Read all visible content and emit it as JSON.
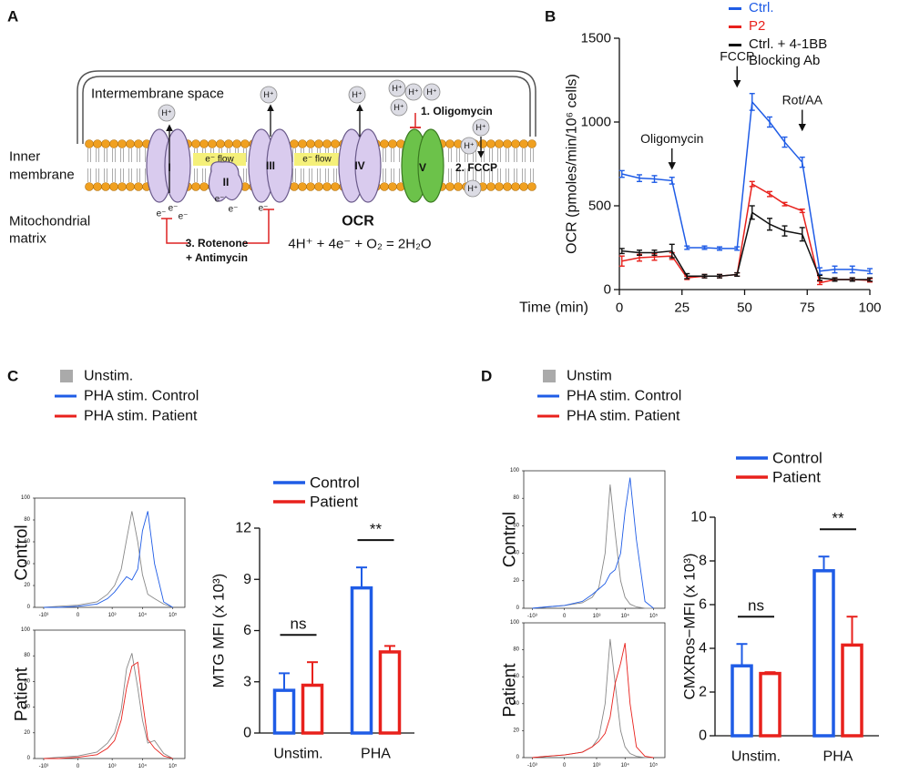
{
  "panel_labels": [
    "A",
    "B",
    "C",
    "D"
  ],
  "diagram": {
    "intermembrane": "Intermembrane space",
    "inner_membrane": [
      "Inner",
      "membrane"
    ],
    "matrix": [
      "Mitochondrial",
      "matrix"
    ],
    "complexes": [
      "I",
      "II",
      "III",
      "IV",
      "V"
    ],
    "electron_flow": "e⁻ flow",
    "proton": "H⁺",
    "electron": "e⁻",
    "oligomycin": "1. Oligomycin",
    "fccp": "2. FCCP",
    "rotenone_antimycin": [
      "3. Rotenone",
      "+ Antimycin"
    ],
    "ocr_title": "OCR",
    "equation": "4H⁺ + 4e⁻ + O₂ = 2H₂O"
  },
  "figure_legends": [
    {
      "entries": [
        {
          "name": "Unstim.",
          "color": "#aaaaaa",
          "shape": "square"
        },
        {
          "name": "PHA stim. Control",
          "color": "#1f5ce6",
          "shape": "line"
        },
        {
          "name": "PHA stim. Patient",
          "color": "#e8211c",
          "shape": "line"
        }
      ]
    },
    {
      "entries": [
        {
          "name": "Unstim",
          "color": "#aaaaaa",
          "shape": "square"
        },
        {
          "name": "PHA stim. Control",
          "color": "#1f5ce6",
          "shape": "line"
        },
        {
          "name": "PHA stim. Patient",
          "color": "#e8211c",
          "shape": "line"
        }
      ]
    }
  ],
  "chart_data": [
    {
      "type": "line",
      "xlabel": "Time (min)",
      "ylabel": "OCR (pmoles/min/10⁶ cells)",
      "x": [
        1,
        8,
        14,
        21,
        27,
        34,
        40,
        47,
        53,
        60,
        66,
        73,
        80,
        86,
        93,
        100
      ],
      "xlim": [
        0,
        100
      ],
      "xticks": [
        0,
        25,
        50,
        75,
        100
      ],
      "ylim": [
        0,
        1500
      ],
      "yticks": [
        0,
        500,
        1000,
        1500
      ],
      "error_bars": true,
      "series": [
        {
          "name": "Ctrl.",
          "color": "#1f5ce6",
          "values": [
            690,
            665,
            660,
            650,
            250,
            250,
            245,
            245,
            1120,
            1000,
            880,
            760,
            110,
            120,
            120,
            110
          ],
          "errors": [
            20,
            20,
            20,
            20,
            10,
            10,
            10,
            10,
            50,
            30,
            30,
            30,
            20,
            20,
            20,
            15
          ]
        },
        {
          "name": "P2",
          "color": "#e8211c",
          "values": [
            170,
            190,
            195,
            200,
            70,
            80,
            80,
            90,
            630,
            570,
            510,
            470,
            40,
            60,
            60,
            55
          ],
          "errors": [
            30,
            20,
            20,
            20,
            10,
            10,
            10,
            10,
            15,
            15,
            10,
            10,
            10,
            10,
            10,
            10
          ]
        },
        {
          "name": "Ctrl. + 4-1BB Blocking Ab",
          "color": "#111111",
          "values": [
            230,
            220,
            220,
            230,
            80,
            80,
            80,
            90,
            460,
            390,
            350,
            330,
            70,
            60,
            60,
            60
          ],
          "errors": [
            15,
            15,
            15,
            40,
            15,
            10,
            10,
            10,
            40,
            35,
            30,
            40,
            15,
            10,
            10,
            10
          ]
        }
      ],
      "annotations": [
        {
          "text": "Oligomycin",
          "x": 21
        },
        {
          "text": "FCCP",
          "x": 47
        },
        {
          "text": "Rot/AA",
          "x": 73
        }
      ]
    },
    {
      "type": "line",
      "ylabel": "Control",
      "xscale": "asinh",
      "x": [
        -1000,
        -300,
        0,
        300,
        700,
        1200,
        2000,
        3000,
        4500,
        7000,
        10000,
        15000,
        25000,
        50000,
        100000
      ],
      "xlim": [
        -2000,
        250000
      ],
      "xticks": [
        {
          "value": -1000,
          "label": "-10³"
        },
        0,
        {
          "value": 1000,
          "label": "10³"
        },
        {
          "value": 10000,
          "label": "10⁴"
        },
        {
          "value": 100000,
          "label": "10⁵"
        }
      ],
      "ylim": [
        0,
        100
      ],
      "yticks": [
        0,
        20,
        40,
        60,
        80,
        100
      ],
      "series": [
        {
          "color": "#888888",
          "values": [
            0,
            1,
            2,
            5,
            12,
            20,
            35,
            62,
            88,
            60,
            30,
            12,
            8,
            3,
            0
          ]
        },
        {
          "color": "#1f5ce6",
          "values": [
            0,
            0,
            1,
            3,
            8,
            14,
            22,
            28,
            25,
            35,
            70,
            88,
            40,
            5,
            0
          ]
        }
      ]
    },
    {
      "type": "line",
      "ylabel": "Patient",
      "xscale": "asinh",
      "x": [
        -1000,
        -300,
        0,
        300,
        700,
        1200,
        2000,
        3000,
        4500,
        7000,
        10000,
        15000,
        25000,
        50000,
        100000
      ],
      "xlim": [
        -2000,
        250000
      ],
      "xticks": [
        {
          "value": -1000,
          "label": "-10³"
        },
        0,
        {
          "value": 1000,
          "label": "10³"
        },
        {
          "value": 10000,
          "label": "10⁴"
        },
        {
          "value": 100000,
          "label": "10⁵"
        }
      ],
      "ylim": [
        0,
        100
      ],
      "yticks": [
        0,
        20,
        40,
        60,
        80,
        100
      ],
      "series": [
        {
          "color": "#888888",
          "values": [
            0,
            1,
            2,
            5,
            12,
            20,
            38,
            70,
            82,
            55,
            30,
            12,
            14,
            4,
            0
          ]
        },
        {
          "color": "#e8211c",
          "values": [
            0,
            0,
            1,
            3,
            8,
            14,
            30,
            55,
            72,
            75,
            45,
            15,
            8,
            2,
            0
          ]
        }
      ]
    },
    {
      "type": "bar",
      "ylabel": "MTG MFI (x 10³)",
      "categories": [
        "Unstim.",
        "PHA"
      ],
      "ylim": [
        0,
        12
      ],
      "yticks": [
        0,
        3,
        6,
        9,
        12
      ],
      "series": [
        {
          "name": "Control",
          "color": "#1f5ce6",
          "values": [
            2.5,
            8.5
          ],
          "errors": [
            1.0,
            1.2
          ]
        },
        {
          "name": "Patient",
          "color": "#e8211c",
          "values": [
            2.8,
            4.75
          ],
          "errors": [
            1.35,
            0.35
          ]
        }
      ],
      "significance": [
        "ns",
        "**"
      ]
    },
    {
      "type": "line",
      "ylabel": "Control",
      "xscale": "asinh",
      "x": [
        -1000,
        -300,
        0,
        300,
        700,
        1200,
        2000,
        3000,
        4500,
        7000,
        10000,
        15000,
        25000,
        50000,
        100000
      ],
      "xlim": [
        -2000,
        250000
      ],
      "xticks": [
        {
          "value": -1000,
          "label": "-10³"
        },
        0,
        {
          "value": 1000,
          "label": "10³"
        },
        {
          "value": 10000,
          "label": "10⁴"
        },
        {
          "value": 100000,
          "label": "10⁵"
        }
      ],
      "ylim": [
        0,
        100
      ],
      "yticks": [
        0,
        20,
        40,
        60,
        80,
        100
      ],
      "series": [
        {
          "color": "#888888",
          "values": [
            0,
            1,
            2,
            4,
            8,
            15,
            40,
            90,
            55,
            20,
            8,
            3,
            1,
            0,
            0
          ]
        },
        {
          "color": "#1f5ce6",
          "values": [
            0,
            1,
            2,
            5,
            10,
            14,
            18,
            25,
            28,
            40,
            70,
            95,
            50,
            5,
            0
          ]
        }
      ]
    },
    {
      "type": "line",
      "ylabel": "Patient",
      "xscale": "asinh",
      "x": [
        -1000,
        -300,
        0,
        300,
        700,
        1200,
        2000,
        3000,
        4500,
        7000,
        10000,
        15000,
        25000,
        50000,
        100000
      ],
      "xlim": [
        -2000,
        250000
      ],
      "xticks": [
        {
          "value": -1000,
          "label": "-10³"
        },
        0,
        {
          "value": 1000,
          "label": "10³"
        },
        {
          "value": 10000,
          "label": "10⁴"
        },
        {
          "value": 100000,
          "label": "10⁵"
        }
      ],
      "ylim": [
        0,
        100
      ],
      "yticks": [
        0,
        20,
        40,
        60,
        80,
        100
      ],
      "series": [
        {
          "color": "#888888",
          "values": [
            0,
            1,
            2,
            4,
            8,
            15,
            40,
            88,
            55,
            20,
            8,
            3,
            1,
            0,
            0
          ]
        },
        {
          "color": "#e8211c",
          "values": [
            0,
            1,
            2,
            4,
            8,
            12,
            18,
            30,
            55,
            70,
            85,
            40,
            8,
            1,
            0
          ]
        }
      ]
    },
    {
      "type": "bar",
      "ylabel": "CMXRos−MFI (x 10³)",
      "categories": [
        "Unstim.",
        "PHA"
      ],
      "ylim": [
        0,
        10
      ],
      "yticks": [
        0,
        2,
        4,
        6,
        8,
        10
      ],
      "series": [
        {
          "name": "Control",
          "color": "#1f5ce6",
          "values": [
            3.2,
            7.55
          ],
          "errors": [
            1.0,
            0.65
          ]
        },
        {
          "name": "Patient",
          "color": "#e8211c",
          "values": [
            2.85,
            4.15
          ],
          "errors": [
            0.06,
            1.3
          ]
        }
      ],
      "significance": [
        "ns",
        "**"
      ]
    }
  ]
}
